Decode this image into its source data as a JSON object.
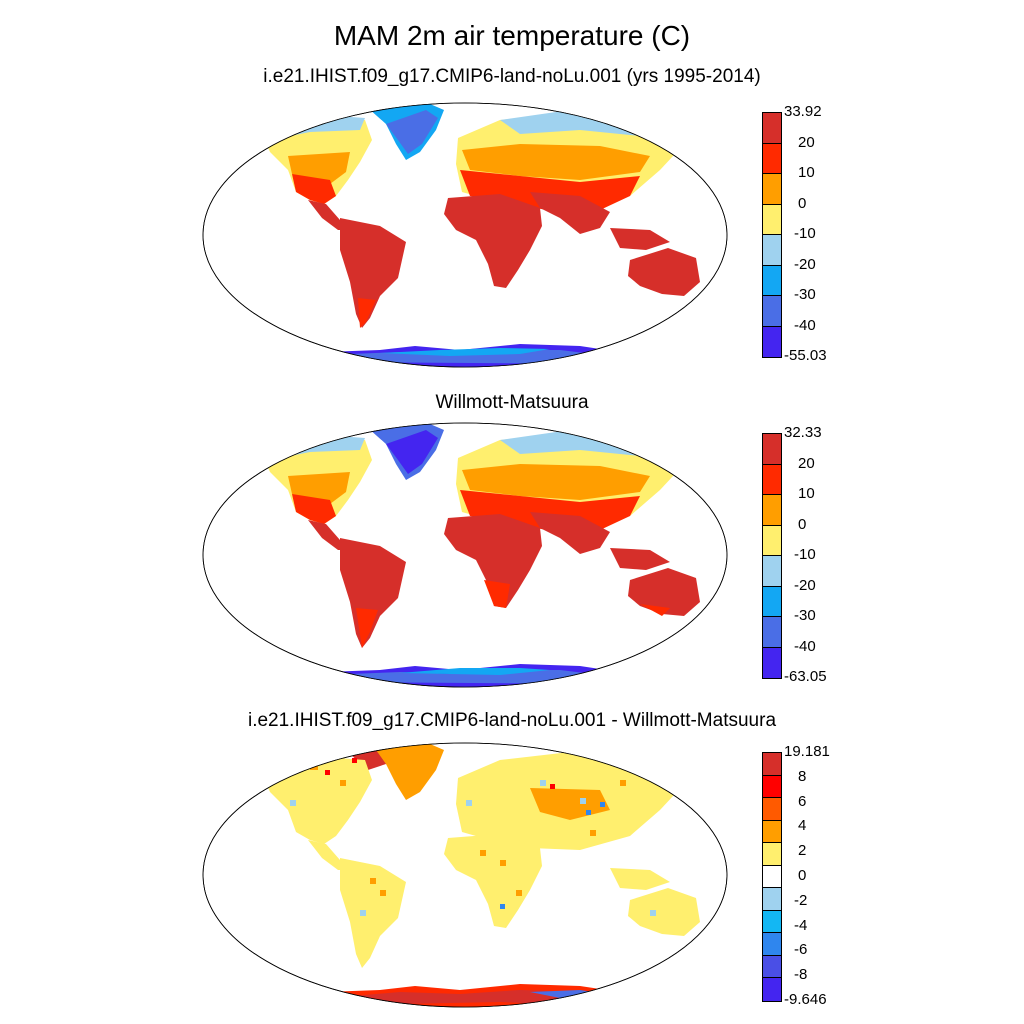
{
  "title": "MAM 2m air temperature (C)",
  "panels": [
    {
      "subtitle": "i.e21.IHIST.f09_g17.CMIP6-land-noLu.001 (yrs 1995-2014)",
      "colorbar_labels": [
        "33.92",
        "20",
        "10",
        "0",
        "-10",
        "-20",
        "-30",
        "-40",
        "-55.03"
      ],
      "colorbar_colors": [
        "#d62f2a",
        "#ff2a00",
        "#ff9e00",
        "#ffef6e",
        "#9fd2ef",
        "#13a7f3",
        "#4a6ee6",
        "#4425f0"
      ]
    },
    {
      "subtitle": "Willmott-Matsuura",
      "colorbar_labels": [
        "32.33",
        "20",
        "10",
        "0",
        "-10",
        "-20",
        "-30",
        "-40",
        "-63.05"
      ],
      "colorbar_colors": [
        "#d62f2a",
        "#ff2a00",
        "#ff9e00",
        "#ffef6e",
        "#9fd2ef",
        "#13a7f3",
        "#4a6ee6",
        "#4425f0"
      ]
    },
    {
      "subtitle": "i.e21.IHIST.f09_g17.CMIP6-land-noLu.001 - Willmott-Matsuura",
      "colorbar_labels": [
        "19.181",
        "8",
        "6",
        "4",
        "2",
        "0",
        "-2",
        "-4",
        "-6",
        "-8",
        "-9.646"
      ],
      "colorbar_colors": [
        "#d62f2a",
        "#ff0000",
        "#ff5a00",
        "#ff9e00",
        "#ffef6e",
        "#ffffff",
        "#9fd2ef",
        "#13b7f3",
        "#2f86ee",
        "#4a4fe6",
        "#4425f0"
      ]
    }
  ]
}
